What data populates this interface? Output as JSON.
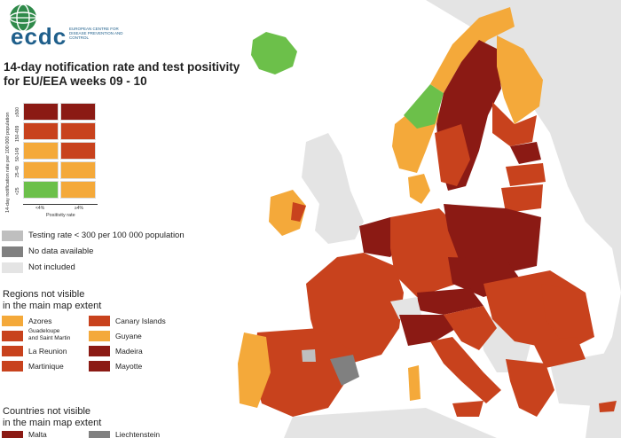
{
  "logo": {
    "name": "ecdc",
    "tagline": "EUROPEAN CENTRE FOR DISEASE PREVENTION AND CONTROL"
  },
  "title": {
    "line1": "14-day notification rate and test positivity",
    "line2": "for EU/EEA weeks 09 - 10"
  },
  "matrix": {
    "y_axis_label": "14-day notification rate per 100 000 population",
    "y_ticks": [
      "≥500",
      "150-499",
      "50-149",
      "25-49",
      "<25"
    ],
    "x_axis_label": "Positivity rate",
    "x_ticks": [
      "<4%",
      "≥4%"
    ],
    "rows": [
      [
        "#8b1a14",
        "#8b1a14"
      ],
      [
        "#c8421d",
        "#c8421d"
      ],
      [
        "#f4a93a",
        "#c8421d"
      ],
      [
        "#f4a93a",
        "#f4a93a"
      ],
      [
        "#6cc04a",
        "#f4a93a"
      ]
    ]
  },
  "colors": {
    "dark_red": "#8b1a14",
    "red_orange": "#c8421d",
    "orange": "#f4a93a",
    "green": "#6cc04a",
    "grey_light": "#bfbfbf",
    "grey_dark": "#808080",
    "not_included": "#e4e4e4",
    "sea": "#ffffff"
  },
  "legend": [
    {
      "label": "Testing rate < 300 per 100 000 population",
      "color": "#bfbfbf"
    },
    {
      "label": "No data available",
      "color": "#808080"
    },
    {
      "label": "Not included",
      "color": "#e4e4e4"
    }
  ],
  "regions_section": {
    "line1": "Regions not visible",
    "line2": "in the main map extent"
  },
  "regions": [
    {
      "label": "Azores",
      "color": "#f4a93a"
    },
    {
      "label": "Guadeloupe and Saint Martin",
      "line1": "Guadeloupe",
      "line2": "and Saint Martin",
      "color": "#c8421d"
    },
    {
      "label": "La Reunion",
      "color": "#c8421d"
    },
    {
      "label": "Martinique",
      "color": "#c8421d"
    },
    {
      "label": "Canary Islands",
      "color": "#c8421d"
    },
    {
      "label": "Guyane",
      "color": "#f4a93a"
    },
    {
      "label": "Madeira",
      "color": "#8b1a14"
    },
    {
      "label": "Mayotte",
      "color": "#8b1a14"
    }
  ],
  "countries_section": {
    "line1": "Countries not visible",
    "line2": "in the main map extent"
  },
  "countries": [
    {
      "label": "Malta",
      "color": "#8b1a14"
    },
    {
      "label": "Liechtenstein",
      "color": "#808080"
    }
  ]
}
